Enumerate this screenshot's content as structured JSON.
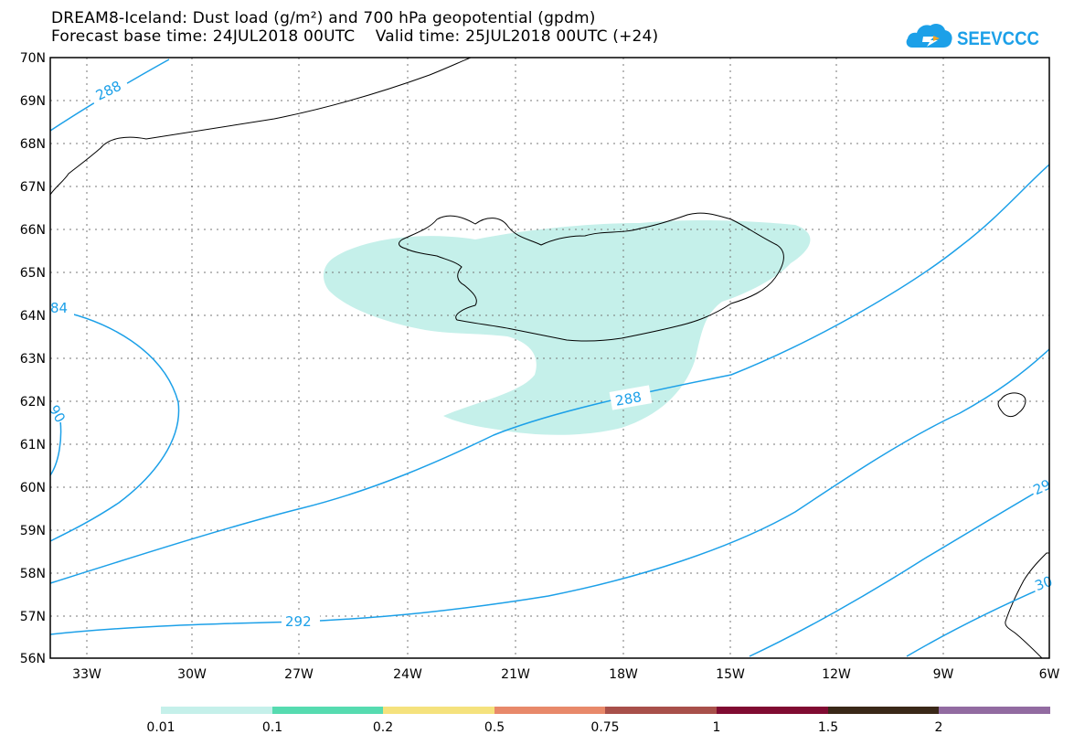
{
  "title_line1": "DREAM8-Iceland: Dust load (g/m²) and 700 hPa geopotential (gpdm)",
  "title_line2": "Forecast base time: 24JUL2018 00UTC    Valid time: 25JUL2018 00UTC (+24)",
  "logo_text": "SEEVCCC",
  "map": {
    "lon_range": [
      -34.5,
      -6
    ],
    "lat_range": [
      56,
      70
    ],
    "lat_ticks": [
      "70N",
      "69N",
      "68N",
      "67N",
      "66N",
      "65N",
      "64N",
      "63N",
      "62N",
      "61N",
      "60N",
      "59N",
      "58N",
      "57N",
      "56N"
    ],
    "lon_ticks": [
      "33W",
      "30W",
      "27W",
      "24W",
      "21W",
      "18W",
      "15W",
      "12W",
      "9W",
      "6W"
    ],
    "gridlines": true
  },
  "contour_labels": [
    "288",
    "84",
    "90",
    "288",
    "292",
    "29",
    "30"
  ],
  "legend": {
    "labels": [
      "0.01",
      "0.1",
      "0.2",
      "0.5",
      "0.75",
      "1",
      "1.5",
      "2"
    ],
    "colors": [
      "#c5f0ea",
      "#56dbb0",
      "#f5e27d",
      "#e8896a",
      "#a8504a",
      "#800b32",
      "#3a2818",
      "#926ba1"
    ]
  },
  "colors": {
    "contour": "#1ca0e8",
    "dust_fill": "#c5f0ea",
    "coastline": "#000000",
    "logo_blue": "#1ca0e8"
  }
}
